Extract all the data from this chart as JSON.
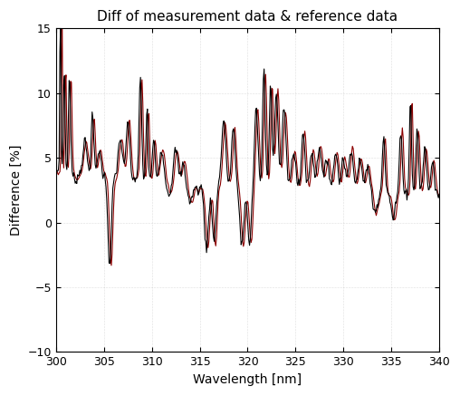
{
  "title": "Diff of measurement data & reference data",
  "xlabel": "Wavelength [nm]",
  "ylabel": "Difference [%]",
  "xlim": [
    300,
    340
  ],
  "ylim": [
    -10,
    15
  ],
  "xticks": [
    300,
    305,
    310,
    315,
    320,
    325,
    330,
    335,
    340
  ],
  "yticks": [
    -10,
    -5,
    0,
    5,
    10,
    15
  ],
  "line1_color": "#000000",
  "line2_color": "#8b0000",
  "line_width": 0.8,
  "background_color": "#ffffff",
  "title_fontsize": 11,
  "axis_fontsize": 10,
  "tick_fontsize": 9
}
